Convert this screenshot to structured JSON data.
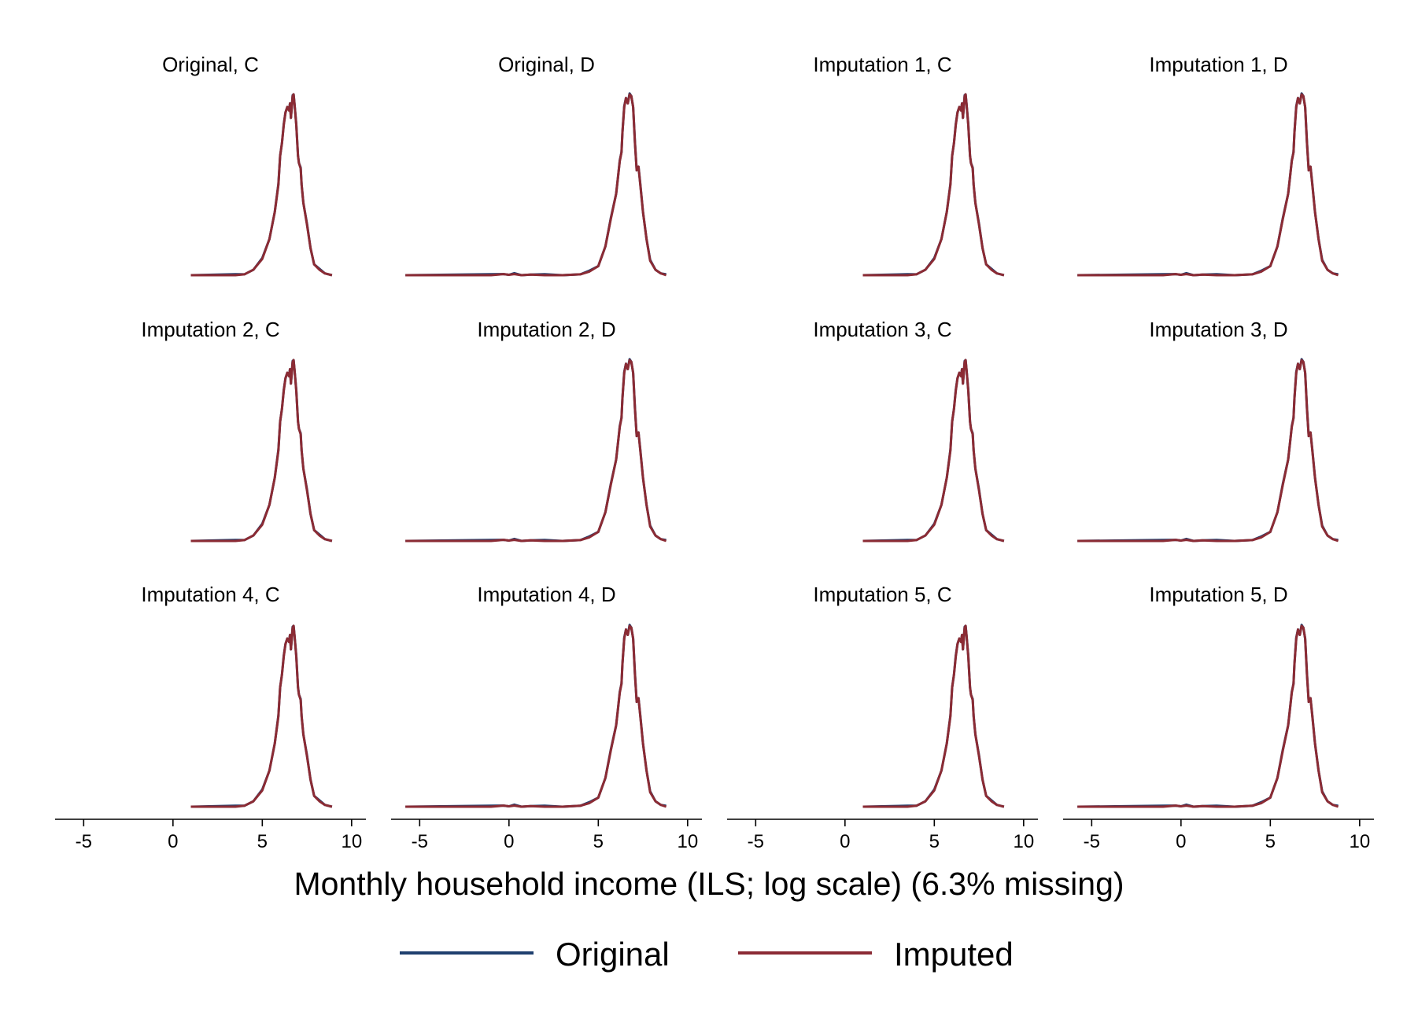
{
  "chart_data": {
    "type": "line",
    "layout": "small-multiples 3x4",
    "xlabel": "Monthly household income (ILS; log scale) (6.3% missing)",
    "x_ticks": [
      -5,
      0,
      5,
      10
    ],
    "xlim": [
      -6.6,
      10.8
    ],
    "y_axis_shown": false,
    "grid": false,
    "legend_position": "bottom",
    "series": [
      {
        "name": "Original",
        "color": "#1f3f6e"
      },
      {
        "name": "Imputed",
        "color": "#8b2b34"
      }
    ],
    "panels": [
      {
        "title": "Original, C",
        "group": "C",
        "x_range": [
          1.0,
          8.9
        ],
        "peak": 1.0
      },
      {
        "title": "Original, D",
        "group": "D",
        "x_range": [
          -5.8,
          8.8
        ],
        "peak": 1.0
      },
      {
        "title": "Imputation 1, C",
        "group": "C",
        "x_range": [
          1.0,
          8.9
        ],
        "peak": 1.0
      },
      {
        "title": "Imputation 1, D",
        "group": "D",
        "x_range": [
          -5.8,
          8.8
        ],
        "peak": 1.0
      },
      {
        "title": "Imputation 2, C",
        "group": "C",
        "x_range": [
          1.0,
          8.9
        ],
        "peak": 1.0
      },
      {
        "title": "Imputation 2, D",
        "group": "D",
        "x_range": [
          -5.8,
          8.8
        ],
        "peak": 1.0
      },
      {
        "title": "Imputation 3, C",
        "group": "C",
        "x_range": [
          1.0,
          8.9
        ],
        "peak": 1.0
      },
      {
        "title": "Imputation 3, D",
        "group": "D",
        "x_range": [
          -5.8,
          8.8
        ],
        "peak": 1.0
      },
      {
        "title": "Imputation 4, C",
        "group": "C",
        "x_range": [
          1.0,
          8.9
        ],
        "peak": 1.0
      },
      {
        "title": "Imputation 4, D",
        "group": "D",
        "x_range": [
          -5.8,
          8.8
        ],
        "peak": 1.0
      },
      {
        "title": "Imputation 5, C",
        "group": "C",
        "x_range": [
          1.0,
          8.9
        ],
        "peak": 1.0
      },
      {
        "title": "Imputation 5, D",
        "group": "D",
        "x_range": [
          -5.8,
          8.8
        ],
        "peak": 1.0
      }
    ],
    "density_C": {
      "x": [
        1.0,
        3.5,
        4.0,
        4.5,
        5.0,
        5.4,
        5.7,
        5.9,
        6.0,
        6.1,
        6.2,
        6.3,
        6.4,
        6.5,
        6.55,
        6.6,
        6.7,
        6.75,
        6.8,
        6.9,
        7.0,
        7.05,
        7.15,
        7.2,
        7.3,
        7.5,
        7.7,
        7.9,
        8.2,
        8.5,
        8.9
      ],
      "y": [
        0.0,
        0.0,
        0.005,
        0.03,
        0.09,
        0.2,
        0.35,
        0.5,
        0.66,
        0.73,
        0.83,
        0.9,
        0.93,
        0.91,
        0.95,
        0.87,
        0.99,
        1.0,
        0.95,
        0.83,
        0.66,
        0.62,
        0.59,
        0.5,
        0.4,
        0.28,
        0.15,
        0.06,
        0.03,
        0.01,
        0.0
      ]
    },
    "density_D": {
      "x": [
        -5.8,
        -1.0,
        -0.3,
        0.0,
        0.3,
        0.7,
        1.2,
        2.0,
        3.0,
        4.0,
        4.5,
        5.0,
        5.4,
        5.7,
        6.0,
        6.1,
        6.2,
        6.3,
        6.35,
        6.45,
        6.55,
        6.65,
        6.75,
        6.85,
        6.95,
        7.05,
        7.15,
        7.25,
        7.35,
        7.5,
        7.7,
        7.9,
        8.2,
        8.5,
        8.8
      ],
      "y": [
        0.0,
        0.0,
        0.006,
        0.002,
        0.006,
        0.0,
        0.003,
        0.0,
        0.0,
        0.005,
        0.02,
        0.05,
        0.16,
        0.31,
        0.45,
        0.54,
        0.63,
        0.68,
        0.79,
        0.93,
        0.98,
        0.95,
        1.0,
        0.99,
        0.93,
        0.73,
        0.58,
        0.6,
        0.5,
        0.35,
        0.2,
        0.08,
        0.03,
        0.01,
        0.0
      ]
    }
  }
}
